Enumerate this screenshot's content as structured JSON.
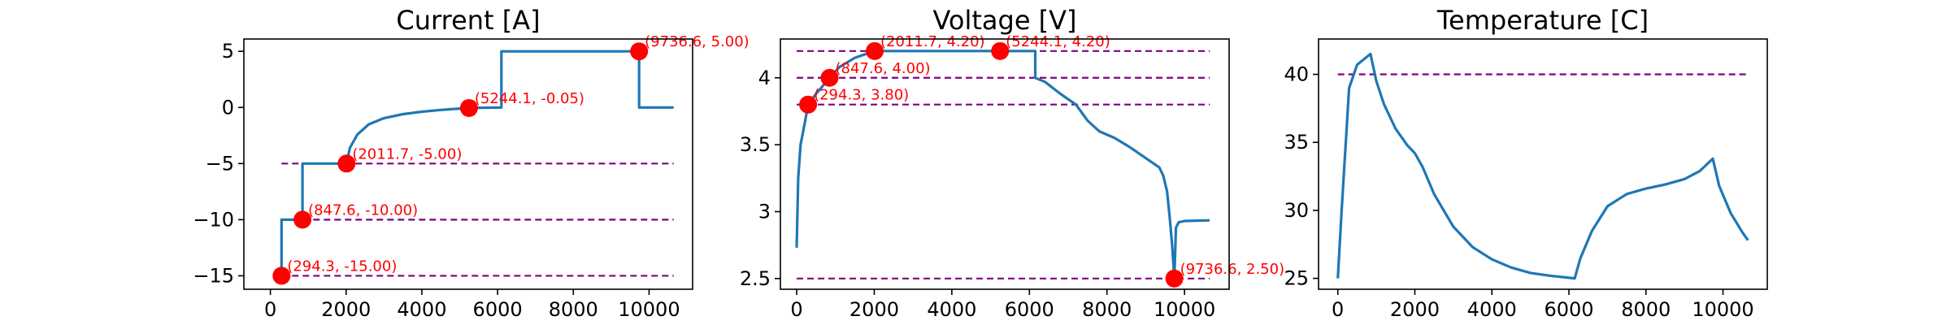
{
  "chart_data": [
    {
      "type": "line",
      "title": "Current [A]",
      "xlim": [
        -700,
        11150
      ],
      "ylim": [
        -16.2,
        6.1
      ],
      "xticks": [
        0,
        2000,
        4000,
        6000,
        8000,
        10000
      ],
      "yticks": [
        -15,
        -10,
        -5,
        0,
        5
      ],
      "series": [
        {
          "color": "#1f77b4",
          "points": [
            [
              294,
              -15
            ],
            [
              294,
              -10
            ],
            [
              848,
              -10
            ],
            [
              848,
              -5
            ],
            [
              2012,
              -5
            ],
            [
              2100,
              -3.6
            ],
            [
              2300,
              -2.4
            ],
            [
              2600,
              -1.5
            ],
            [
              3000,
              -0.95
            ],
            [
              3500,
              -0.6
            ],
            [
              4000,
              -0.38
            ],
            [
              4500,
              -0.22
            ],
            [
              5000,
              -0.1
            ],
            [
              5244,
              -0.05
            ],
            [
              6100,
              0
            ],
            [
              6100,
              5
            ],
            [
              9737,
              5
            ],
            [
              9737,
              0
            ],
            [
              10650,
              0
            ]
          ]
        }
      ],
      "hlines": [
        -5,
        -10,
        -15
      ],
      "hline_color": "#800080",
      "marker_color": "#ff0000",
      "markers": [
        {
          "x": 294.3,
          "y": -15.0,
          "label": "(294.3, -15.00)"
        },
        {
          "x": 847.6,
          "y": -10.0,
          "label": "(847.6, -10.00)"
        },
        {
          "x": 2011.7,
          "y": -5.0,
          "label": "(2011.7, -5.00)"
        },
        {
          "x": 5244.1,
          "y": -0.05,
          "label": "(5244.1, -0.05)"
        },
        {
          "x": 9736.6,
          "y": 5.0,
          "label": "(9736.6, 5.00)"
        }
      ]
    },
    {
      "type": "line",
      "title": "Voltage [V]",
      "xlim": [
        -420,
        11150
      ],
      "ylim": [
        2.42,
        4.29
      ],
      "xticks": [
        0,
        2000,
        4000,
        6000,
        8000,
        10000
      ],
      "yticks": [
        2.5,
        3.0,
        3.5,
        4.0
      ],
      "series": [
        {
          "color": "#1f77b4",
          "points": [
            [
              0,
              2.73
            ],
            [
              40,
              3.25
            ],
            [
              100,
              3.5
            ],
            [
              200,
              3.65
            ],
            [
              294,
              3.8
            ],
            [
              500,
              3.88
            ],
            [
              848,
              4.0
            ],
            [
              1100,
              4.08
            ],
            [
              1500,
              4.15
            ],
            [
              2012,
              4.2
            ],
            [
              6150,
              4.2
            ],
            [
              6150,
              4.0
            ],
            [
              6400,
              3.97
            ],
            [
              6800,
              3.88
            ],
            [
              7200,
              3.8
            ],
            [
              7500,
              3.68
            ],
            [
              7800,
              3.6
            ],
            [
              8200,
              3.55
            ],
            [
              8600,
              3.48
            ],
            [
              9000,
              3.4
            ],
            [
              9200,
              3.36
            ],
            [
              9350,
              3.33
            ],
            [
              9450,
              3.27
            ],
            [
              9550,
              3.15
            ],
            [
              9620,
              2.95
            ],
            [
              9680,
              2.75
            ],
            [
              9737,
              2.5
            ],
            [
              9780,
              2.88
            ],
            [
              9850,
              2.92
            ],
            [
              10000,
              2.93
            ],
            [
              10650,
              2.935
            ]
          ]
        }
      ],
      "hlines": [
        4.2,
        4.0,
        3.8,
        2.5
      ],
      "hline_color": "#800080",
      "marker_color": "#ff0000",
      "markers": [
        {
          "x": 294.3,
          "y": 3.8,
          "label": "(294.3, 3.80)"
        },
        {
          "x": 847.6,
          "y": 4.0,
          "label": "(847.6, 4.00)"
        },
        {
          "x": 2011.7,
          "y": 4.2,
          "label": "(2011.7, 4.20)"
        },
        {
          "x": 5244.1,
          "y": 4.2,
          "label": "(5244.1, 4.20)"
        },
        {
          "x": 9736.6,
          "y": 2.5,
          "label": "(9736.6, 2.50)"
        }
      ]
    },
    {
      "type": "line",
      "title": "Temperature [C]",
      "xlim": [
        -500,
        11150
      ],
      "ylim": [
        24.2,
        42.6
      ],
      "xticks": [
        0,
        2000,
        4000,
        6000,
        8000,
        10000
      ],
      "yticks": [
        25,
        30,
        35,
        40
      ],
      "series": [
        {
          "color": "#1f77b4",
          "points": [
            [
              0,
              25
            ],
            [
              100,
              30
            ],
            [
              294,
              39
            ],
            [
              500,
              40.7
            ],
            [
              848,
              41.5
            ],
            [
              1000,
              39.5
            ],
            [
              1200,
              37.8
            ],
            [
              1500,
              36
            ],
            [
              1800,
              34.8
            ],
            [
              2000,
              34.2
            ],
            [
              2200,
              33.2
            ],
            [
              2500,
              31.2
            ],
            [
              3000,
              28.8
            ],
            [
              3500,
              27.3
            ],
            [
              4000,
              26.4
            ],
            [
              4500,
              25.8
            ],
            [
              5000,
              25.4
            ],
            [
              5500,
              25.2
            ],
            [
              6150,
              25
            ],
            [
              6300,
              26.5
            ],
            [
              6600,
              28.5
            ],
            [
              7000,
              30.3
            ],
            [
              7500,
              31.2
            ],
            [
              8000,
              31.6
            ],
            [
              8500,
              31.9
            ],
            [
              9000,
              32.3
            ],
            [
              9400,
              32.9
            ],
            [
              9737,
              33.8
            ],
            [
              9900,
              31.8
            ],
            [
              10200,
              29.8
            ],
            [
              10500,
              28.4
            ],
            [
              10650,
              27.8
            ]
          ]
        }
      ],
      "hlines": [
        40
      ],
      "hline_color": "#800080",
      "marker_color": "#ff0000",
      "markers": []
    }
  ]
}
